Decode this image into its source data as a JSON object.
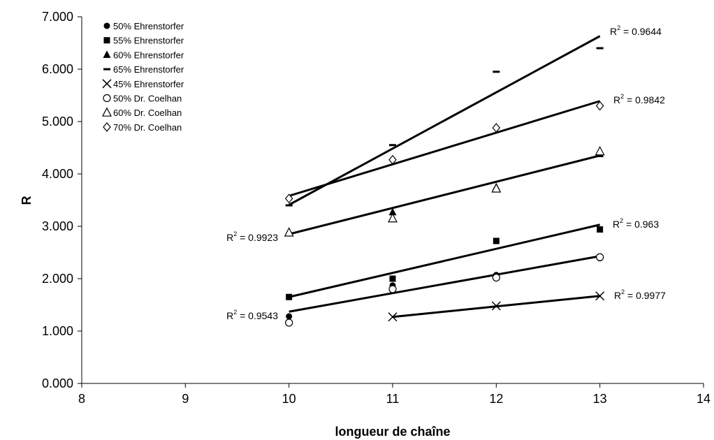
{
  "chart_data": {
    "type": "scatter",
    "title": "",
    "xlabel": "longueur de chaîne",
    "ylabel": "R",
    "xlim": [
      8,
      14
    ],
    "ylim": [
      0,
      7
    ],
    "x_ticks": [
      "8",
      "9",
      "10",
      "11",
      "12",
      "13",
      "14"
    ],
    "y_ticks": [
      "0.000",
      "1.000",
      "2.000",
      "3.000",
      "4.000",
      "5.000",
      "6.000",
      "7.000"
    ],
    "grid": false,
    "legend_position": "top-left",
    "series": [
      {
        "name": "50% Ehrenstorfer",
        "marker": "filled-circle",
        "points": [
          [
            10,
            1.28
          ],
          [
            11,
            1.87
          ],
          [
            12,
            2.07
          ],
          [
            13,
            2.39
          ]
        ]
      },
      {
        "name": "55% Ehrenstorfer",
        "marker": "filled-square",
        "points": [
          [
            10,
            1.65
          ],
          [
            11,
            2.0
          ],
          [
            12,
            2.72
          ],
          [
            13,
            2.94
          ]
        ]
      },
      {
        "name": "60% Ehrenstorfer",
        "marker": "filled-triangle",
        "points": [
          [
            10,
            2.9
          ],
          [
            11,
            3.27
          ],
          [
            12,
            3.75
          ],
          [
            13,
            4.38
          ]
        ]
      },
      {
        "name": "65% Ehrenstorfer",
        "marker": "dash",
        "points": [
          [
            10,
            3.4
          ],
          [
            11,
            4.55
          ],
          [
            12,
            5.95
          ],
          [
            13,
            6.4
          ]
        ]
      },
      {
        "name": "45% Ehrenstorfer",
        "marker": "cross",
        "points": [
          [
            11,
            1.27
          ],
          [
            12,
            1.48
          ],
          [
            13,
            1.67
          ]
        ]
      },
      {
        "name": "50% Dr. Coelhan",
        "marker": "open-circle",
        "points": [
          [
            10,
            1.16
          ],
          [
            11,
            1.8
          ],
          [
            12,
            2.02
          ],
          [
            13,
            2.41
          ]
        ]
      },
      {
        "name": "60% Dr. Coelhan",
        "marker": "open-triangle",
        "points": [
          [
            10,
            2.88
          ],
          [
            11,
            3.15
          ],
          [
            12,
            3.72
          ],
          [
            13,
            4.43
          ]
        ]
      },
      {
        "name": "70% Dr. Coelhan",
        "marker": "open-diamond",
        "points": [
          [
            10,
            3.53
          ],
          [
            11,
            4.27
          ],
          [
            12,
            4.88
          ],
          [
            13,
            5.3
          ]
        ]
      }
    ],
    "trendlines": [
      {
        "from": [
          10,
          3.41
        ],
        "to": [
          13,
          6.63
        ]
      },
      {
        "from": [
          10,
          3.58
        ],
        "to": [
          13,
          5.39
        ]
      },
      {
        "from": [
          10,
          2.85
        ],
        "to": [
          13,
          4.35
        ]
      },
      {
        "from": [
          10,
          1.65
        ],
        "to": [
          13,
          3.03
        ]
      },
      {
        "from": [
          10,
          1.37
        ],
        "to": [
          13,
          2.43
        ]
      },
      {
        "from": [
          11,
          1.27
        ],
        "to": [
          13,
          1.67
        ]
      }
    ],
    "annotations": [
      {
        "base": "R",
        "sup": "2",
        "value": " = 0.9644"
      },
      {
        "base": "R",
        "sup": "2",
        "value": " = 0.9842"
      },
      {
        "base": "R",
        "sup": "2",
        "value": " = 0.9923"
      },
      {
        "base": "R",
        "sup": "2",
        "value": " = 0.963"
      },
      {
        "base": "R",
        "sup": "2",
        "value": " = 0.9543"
      },
      {
        "base": "R",
        "sup": "2",
        "value": " = 0.9977"
      }
    ]
  }
}
